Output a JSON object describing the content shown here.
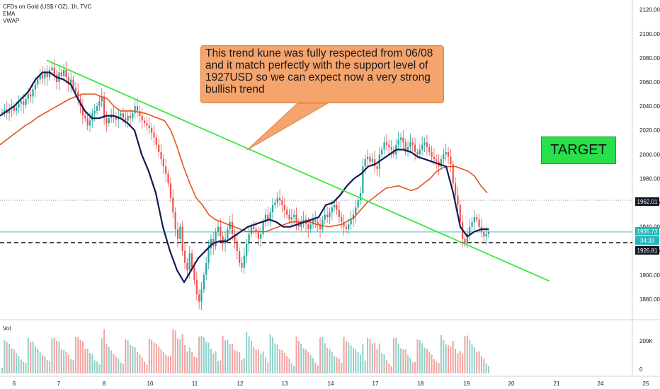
{
  "header": {
    "title": "CFDs on Gold (US$ / OZ), 1h, TVC",
    "indicator1": "EMA",
    "indicator2": "VWAP",
    "volume_label": "Vol"
  },
  "annotation": {
    "text": "This trend kune was fully respected from 06/08 and it match perfectly with the support level of 1927USD  so we can expect now a very strong bullish trend"
  },
  "target_box": {
    "label": "TARGET"
  },
  "price_tags": {
    "level": "1962.01",
    "current": "1935.73",
    "countdown": "34:33",
    "support": "1926.81"
  },
  "colors": {
    "trendline": "#3ce83c",
    "ema": "#e2551c",
    "vwap": "#131a56",
    "candle_up": "#26a69a",
    "candle_down": "#ef5350",
    "callout_bg": "#f4a46c",
    "target_bg": "#27e04a"
  },
  "chart_data": {
    "type": "candlestick",
    "title": "CFDs on Gold (US$ / OZ), 1h, TVC",
    "x_ticks": [
      "6",
      "7",
      "8",
      "10",
      "11",
      "12",
      "13",
      "14",
      "17",
      "18",
      "19",
      "20",
      "21",
      "24",
      "25"
    ],
    "y_ticks": [
      1880,
      1900,
      1920,
      1940,
      1960,
      1980,
      2000,
      2020,
      2040,
      2060,
      2080,
      2100,
      2120
    ],
    "y_tick_labels": [
      "1880.00",
      "1900.00",
      "1920.00",
      "1940.00",
      "1960.00",
      "1980.00",
      "2000.00",
      "2020.00",
      "2040.00",
      "2060.00",
      "2080.00",
      "2100.00",
      "2120.00"
    ],
    "ylim": [
      1863,
      2128
    ],
    "volume_ticks": [
      "0",
      "200K"
    ],
    "close_series": [
      2035,
      2037,
      2034,
      2038,
      2040,
      2036,
      2039,
      2042,
      2044,
      2041,
      2046,
      2050,
      2048,
      2054,
      2058,
      2062,
      2066,
      2063,
      2068,
      2064,
      2070,
      2072,
      2066,
      2060,
      2068,
      2065,
      2070,
      2064,
      2058,
      2062,
      2055,
      2052,
      2046,
      2040,
      2032,
      2030,
      2024,
      2028,
      2034,
      2036,
      2040,
      2044,
      2048,
      2030,
      2026,
      2030,
      2033,
      2031,
      2029,
      2032,
      2034,
      2030,
      2028,
      2032,
      2030,
      2034,
      2040,
      2036,
      2032,
      2028,
      2026,
      2024,
      2022,
      2018,
      2014,
      2008,
      2002,
      1996,
      1990,
      1984,
      1976,
      1964,
      1952,
      1938,
      1930,
      1940,
      1920,
      1910,
      1904,
      1918,
      1906,
      1896,
      1884,
      1878,
      1888,
      1900,
      1910,
      1922,
      1930,
      1924,
      1936,
      1940,
      1932,
      1926,
      1930,
      1938,
      1944,
      1934,
      1928,
      1920,
      1910,
      1906,
      1916,
      1926,
      1934,
      1940,
      1938,
      1936,
      1930,
      1934,
      1944,
      1950,
      1946,
      1952,
      1958,
      1960,
      1964,
      1962,
      1958,
      1954,
      1950,
      1946,
      1948,
      1950,
      1944,
      1940,
      1944,
      1946,
      1942,
      1938,
      1942,
      1946,
      1944,
      1942,
      1938,
      1946,
      1950,
      1948,
      1952,
      1956,
      1958,
      1954,
      1948,
      1944,
      1940,
      1938,
      1942,
      1946,
      1950,
      1956,
      1962,
      1968,
      1990,
      1996,
      1998,
      1994,
      1996,
      1990,
      1988,
      2000,
      2004,
      2010,
      2008,
      2006,
      2004,
      2000,
      2008,
      2012,
      2014,
      2010,
      2002,
      2006,
      2010,
      2008,
      2002,
      2000,
      2004,
      2008,
      2010,
      2006,
      2002,
      1998,
      1996,
      1994,
      1990,
      1996,
      2000,
      2002,
      1998,
      1992,
      1976,
      1966,
      1958,
      1944,
      1930,
      1926,
      1934,
      1940,
      1944,
      1948,
      1946,
      1940,
      1936,
      1932,
      1934,
      1936
    ],
    "ema_series": [
      2008,
      2012,
      2016,
      2020,
      2024,
      2027,
      2031,
      2034,
      2037,
      2040,
      2043,
      2046,
      2048,
      2050,
      2050,
      2050,
      2048,
      2046,
      2040,
      2036,
      2036,
      2036,
      2035,
      2034,
      2032,
      2030,
      2028,
      2020,
      2006,
      1990,
      1976,
      1964,
      1958,
      1950,
      1946,
      1944,
      1942,
      1940,
      1938,
      1936,
      1936,
      1936,
      1936,
      1938,
      1940,
      1942,
      1944,
      1944,
      1944,
      1944,
      1942,
      1941,
      1940,
      1941,
      1942,
      1945,
      1948,
      1954,
      1960,
      1964,
      1968,
      1972,
      1973,
      1974,
      1972,
      1970,
      1972,
      1976,
      1980,
      1986,
      1989,
      1990,
      1990,
      1988,
      1986,
      1982,
      1974,
      1968
    ],
    "vwap_series": [
      2032,
      2036,
      2040,
      2046,
      2052,
      2062,
      2068,
      2068,
      2064,
      2062,
      2058,
      2046,
      2036,
      2030,
      2030,
      2032,
      2032,
      2030,
      2026,
      2020,
      2000,
      1986,
      1968,
      1940,
      1920,
      1904,
      1894,
      1904,
      1914,
      1920,
      1926,
      1928,
      1928,
      1932,
      1936,
      1940,
      1942,
      1944,
      1946,
      1944,
      1940,
      1940,
      1942,
      1944,
      1946,
      1948,
      1958,
      1960,
      1966,
      1974,
      1980,
      1984,
      1990,
      1992,
      1996,
      2000,
      2004,
      2004,
      2002,
      1998,
      1996,
      1994,
      1992,
      1990,
      1968,
      1940,
      1932,
      1936,
      1938,
      1938
    ]
  }
}
